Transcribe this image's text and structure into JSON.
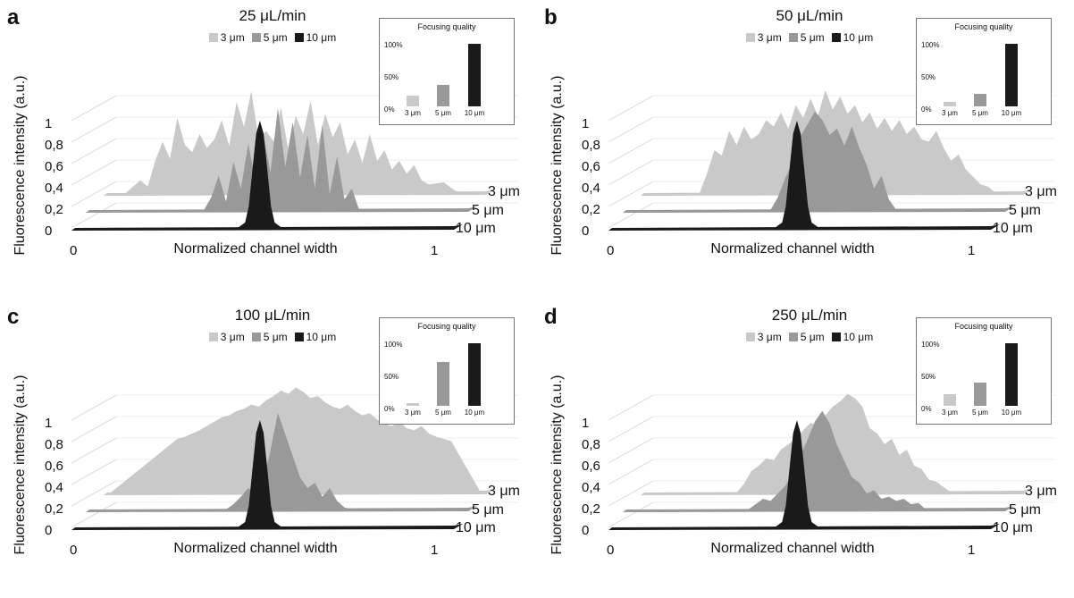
{
  "common": {
    "ylabel": "Fluorescence intensity (a.u.)",
    "xlabel": "Normalized channel width",
    "y_ticks": [
      "0",
      "0,2",
      "0,4",
      "0,6",
      "0,8",
      "1"
    ],
    "x_ticks": [
      "0",
      "1"
    ],
    "series_labels": [
      "3 μm",
      "5 μm",
      "10 μm"
    ],
    "series_colors": [
      "#c9c9c9",
      "#999999",
      "#1a1a1a"
    ],
    "inset_title": "Focusing quality",
    "inset_yticks": [
      "100%",
      "50%",
      "0%"
    ],
    "inset_xlabels": [
      "3 μm",
      "5 μm",
      "10 μm"
    ]
  },
  "chart_data": [
    {
      "type": "area",
      "panel": "a",
      "title": "25 μL/min",
      "xlabel": "Normalized channel width",
      "ylabel": "Fluorescence intensity (a.u.)",
      "xlim": [
        0,
        1
      ],
      "ylim": [
        0,
        1
      ],
      "series": [
        {
          "name": "3 μm",
          "x": [
            0.0,
            0.04,
            0.08,
            0.1,
            0.12,
            0.14,
            0.16,
            0.18,
            0.2,
            0.22,
            0.24,
            0.26,
            0.28,
            0.3,
            0.32,
            0.34,
            0.36,
            0.38,
            0.4,
            0.42,
            0.44,
            0.46,
            0.48,
            0.5,
            0.52,
            0.54,
            0.56,
            0.58,
            0.6,
            0.62,
            0.64,
            0.66,
            0.68,
            0.7,
            0.72,
            0.74,
            0.76,
            0.78,
            0.8,
            0.82,
            0.84,
            0.86,
            0.9,
            0.94,
            1.0
          ],
          "y": [
            0,
            0,
            0.12,
            0.06,
            0.3,
            0.48,
            0.32,
            0.7,
            0.45,
            0.38,
            0.55,
            0.42,
            0.5,
            0.68,
            0.44,
            0.85,
            0.62,
            0.95,
            0.5,
            0.58,
            0.48,
            0.8,
            0.4,
            0.72,
            0.55,
            0.86,
            0.45,
            0.74,
            0.52,
            0.66,
            0.36,
            0.5,
            0.28,
            0.55,
            0.3,
            0.4,
            0.22,
            0.3,
            0.18,
            0.26,
            0.12,
            0.08,
            0.1,
            0,
            0
          ]
        },
        {
          "name": "5 μm",
          "x": [
            0.0,
            0.3,
            0.32,
            0.34,
            0.36,
            0.38,
            0.4,
            0.42,
            0.44,
            0.46,
            0.48,
            0.5,
            0.52,
            0.54,
            0.56,
            0.58,
            0.6,
            0.62,
            0.64,
            0.66,
            0.68,
            0.7,
            0.72,
            1.0
          ],
          "y": [
            0,
            0,
            0.12,
            0.32,
            0.08,
            0.45,
            0.2,
            0.62,
            0.25,
            0.72,
            0.35,
            0.95,
            0.4,
            0.82,
            0.3,
            0.7,
            0.2,
            0.8,
            0.15,
            0.5,
            0.1,
            0.2,
            0,
            0
          ]
        },
        {
          "name": "10 μm",
          "x": [
            0.0,
            0.43,
            0.45,
            0.46,
            0.47,
            0.48,
            0.49,
            0.5,
            0.51,
            0.52,
            0.53,
            0.55,
            1.0
          ],
          "y": [
            0,
            0,
            0.05,
            0.2,
            0.55,
            0.88,
            1.0,
            0.88,
            0.55,
            0.2,
            0.05,
            0,
            0
          ]
        }
      ],
      "inset": {
        "title": "Focusing quality",
        "categories": [
          "3 μm",
          "5 μm",
          "10 μm"
        ],
        "values": [
          0.17,
          0.35,
          1.0
        ],
        "ylim": [
          0,
          1
        ]
      }
    },
    {
      "type": "area",
      "panel": "b",
      "title": "50 μL/min",
      "xlabel": "Normalized channel width",
      "ylabel": "Fluorescence intensity (a.u.)",
      "xlim": [
        0,
        1
      ],
      "ylim": [
        0,
        1
      ],
      "series": [
        {
          "name": "3 μm",
          "x": [
            0.0,
            0.14,
            0.16,
            0.18,
            0.2,
            0.22,
            0.24,
            0.26,
            0.28,
            0.3,
            0.32,
            0.34,
            0.36,
            0.38,
            0.4,
            0.42,
            0.44,
            0.46,
            0.48,
            0.5,
            0.52,
            0.54,
            0.56,
            0.58,
            0.6,
            0.62,
            0.64,
            0.66,
            0.68,
            0.7,
            0.72,
            0.74,
            0.76,
            0.78,
            0.8,
            0.82,
            0.84,
            0.86,
            0.88,
            0.9,
            0.92,
            0.94,
            1.0
          ],
          "y": [
            0,
            0,
            0.18,
            0.4,
            0.35,
            0.58,
            0.45,
            0.62,
            0.5,
            0.55,
            0.68,
            0.62,
            0.75,
            0.6,
            0.82,
            0.7,
            0.88,
            0.72,
            0.96,
            0.78,
            0.9,
            0.74,
            0.82,
            0.66,
            0.75,
            0.6,
            0.7,
            0.58,
            0.68,
            0.55,
            0.62,
            0.5,
            0.48,
            0.58,
            0.42,
            0.3,
            0.36,
            0.22,
            0.15,
            0.08,
            0.06,
            0,
            0
          ]
        },
        {
          "name": "5 μm",
          "x": [
            0.0,
            0.38,
            0.4,
            0.42,
            0.44,
            0.46,
            0.48,
            0.5,
            0.52,
            0.54,
            0.56,
            0.58,
            0.6,
            0.62,
            0.64,
            0.66,
            0.68,
            0.7,
            0.72,
            1.0
          ],
          "y": [
            0,
            0,
            0.12,
            0.3,
            0.45,
            0.68,
            0.8,
            0.92,
            0.84,
            0.7,
            0.76,
            0.6,
            0.78,
            0.58,
            0.42,
            0.2,
            0.32,
            0.1,
            0,
            0
          ]
        },
        {
          "name": "10 μm",
          "x": [
            0.0,
            0.43,
            0.45,
            0.46,
            0.47,
            0.48,
            0.49,
            0.5,
            0.51,
            0.52,
            0.53,
            0.55,
            1.0
          ],
          "y": [
            0,
            0,
            0.05,
            0.2,
            0.55,
            0.88,
            1.0,
            0.88,
            0.55,
            0.2,
            0.05,
            0,
            0
          ]
        }
      ],
      "inset": {
        "title": "Focusing quality",
        "categories": [
          "3 μm",
          "5 μm",
          "10 μm"
        ],
        "values": [
          0.07,
          0.2,
          1.0
        ],
        "ylim": [
          0,
          1
        ]
      }
    },
    {
      "type": "area",
      "panel": "c",
      "title": "100 μL/min",
      "xlabel": "Normalized channel width",
      "ylabel": "Fluorescence intensity (a.u.)",
      "xlim": [
        0,
        1
      ],
      "ylim": [
        0,
        1
      ],
      "series": [
        {
          "name": "3 μm",
          "x": [
            0.0,
            0.18,
            0.2,
            0.22,
            0.24,
            0.26,
            0.28,
            0.3,
            0.32,
            0.34,
            0.36,
            0.38,
            0.4,
            0.42,
            0.44,
            0.46,
            0.48,
            0.5,
            0.52,
            0.54,
            0.56,
            0.58,
            0.6,
            0.62,
            0.64,
            0.66,
            0.68,
            0.7,
            0.72,
            0.74,
            0.76,
            0.78,
            0.8,
            0.82,
            0.84,
            0.86,
            0.88,
            0.9,
            0.92,
            1.0
          ],
          "y": [
            0,
            0.5,
            0.52,
            0.55,
            0.58,
            0.62,
            0.66,
            0.7,
            0.72,
            0.76,
            0.78,
            0.82,
            0.8,
            0.86,
            0.9,
            0.95,
            0.92,
            0.98,
            0.94,
            0.88,
            0.9,
            0.84,
            0.8,
            0.78,
            0.82,
            0.76,
            0.72,
            0.74,
            0.68,
            0.64,
            0.62,
            0.66,
            0.6,
            0.58,
            0.62,
            0.55,
            0.52,
            0.5,
            0.48,
            0
          ]
        },
        {
          "name": "5 μm",
          "x": [
            0.0,
            0.36,
            0.38,
            0.4,
            0.42,
            0.44,
            0.46,
            0.48,
            0.5,
            0.52,
            0.54,
            0.56,
            0.58,
            0.6,
            0.62,
            0.64,
            0.66,
            0.68,
            0.7,
            1.0
          ],
          "y": [
            0,
            0,
            0.05,
            0.12,
            0.2,
            0.15,
            0.25,
            0.55,
            0.9,
            0.7,
            0.5,
            0.3,
            0.2,
            0.25,
            0.12,
            0.2,
            0.08,
            0.02,
            0,
            0
          ]
        },
        {
          "name": "10 μm",
          "x": [
            0.0,
            0.43,
            0.45,
            0.46,
            0.47,
            0.48,
            0.49,
            0.5,
            0.51,
            0.52,
            0.53,
            0.55,
            1.0
          ],
          "y": [
            0,
            0,
            0.05,
            0.2,
            0.55,
            0.88,
            1.0,
            0.88,
            0.55,
            0.2,
            0.05,
            0,
            0
          ]
        }
      ],
      "inset": {
        "title": "Focusing quality",
        "categories": [
          "3 μm",
          "5 μm",
          "10 μm"
        ],
        "values": [
          0.05,
          0.7,
          1.0
        ],
        "ylim": [
          0,
          1
        ]
      }
    },
    {
      "type": "area",
      "panel": "d",
      "title": "250 μL/min",
      "xlabel": "Normalized channel width",
      "ylabel": "Fluorescence intensity (a.u.)",
      "xlim": [
        0,
        1
      ],
      "ylim": [
        0,
        1
      ],
      "series": [
        {
          "name": "3 μm",
          "x": [
            0.0,
            0.24,
            0.26,
            0.28,
            0.3,
            0.32,
            0.34,
            0.36,
            0.38,
            0.4,
            0.42,
            0.44,
            0.46,
            0.48,
            0.5,
            0.52,
            0.54,
            0.56,
            0.58,
            0.6,
            0.62,
            0.64,
            0.66,
            0.68,
            0.7,
            0.72,
            0.74,
            0.76,
            0.78,
            0.8,
            0.82,
            1.0
          ],
          "y": [
            0,
            0,
            0.08,
            0.2,
            0.25,
            0.32,
            0.3,
            0.4,
            0.45,
            0.5,
            0.58,
            0.65,
            0.62,
            0.72,
            0.8,
            0.85,
            0.92,
            0.88,
            0.8,
            0.6,
            0.55,
            0.45,
            0.5,
            0.35,
            0.4,
            0.25,
            0.22,
            0.12,
            0.1,
            0.05,
            0,
            0
          ]
        },
        {
          "name": "5 μm",
          "x": [
            0.0,
            0.32,
            0.34,
            0.36,
            0.38,
            0.4,
            0.42,
            0.44,
            0.46,
            0.48,
            0.5,
            0.52,
            0.54,
            0.56,
            0.58,
            0.6,
            0.62,
            0.64,
            0.66,
            0.68,
            0.7,
            0.72,
            0.74,
            0.76,
            0.78,
            0.8,
            1.0
          ],
          "y": [
            0,
            0,
            0.05,
            0.1,
            0.08,
            0.15,
            0.22,
            0.35,
            0.5,
            0.65,
            0.82,
            0.92,
            0.8,
            0.6,
            0.45,
            0.3,
            0.25,
            0.15,
            0.18,
            0.1,
            0.12,
            0.08,
            0.1,
            0.05,
            0.06,
            0,
            0
          ]
        },
        {
          "name": "10 μm",
          "x": [
            0.0,
            0.43,
            0.45,
            0.46,
            0.47,
            0.48,
            0.49,
            0.5,
            0.51,
            0.52,
            0.53,
            0.55,
            1.0
          ],
          "y": [
            0,
            0,
            0.05,
            0.2,
            0.55,
            0.88,
            1.0,
            0.88,
            0.55,
            0.2,
            0.05,
            0,
            0
          ]
        }
      ],
      "inset": {
        "title": "Focusing quality",
        "categories": [
          "3 μm",
          "5 μm",
          "10 μm"
        ],
        "values": [
          0.18,
          0.37,
          1.0
        ],
        "ylim": [
          0,
          1
        ]
      }
    }
  ]
}
